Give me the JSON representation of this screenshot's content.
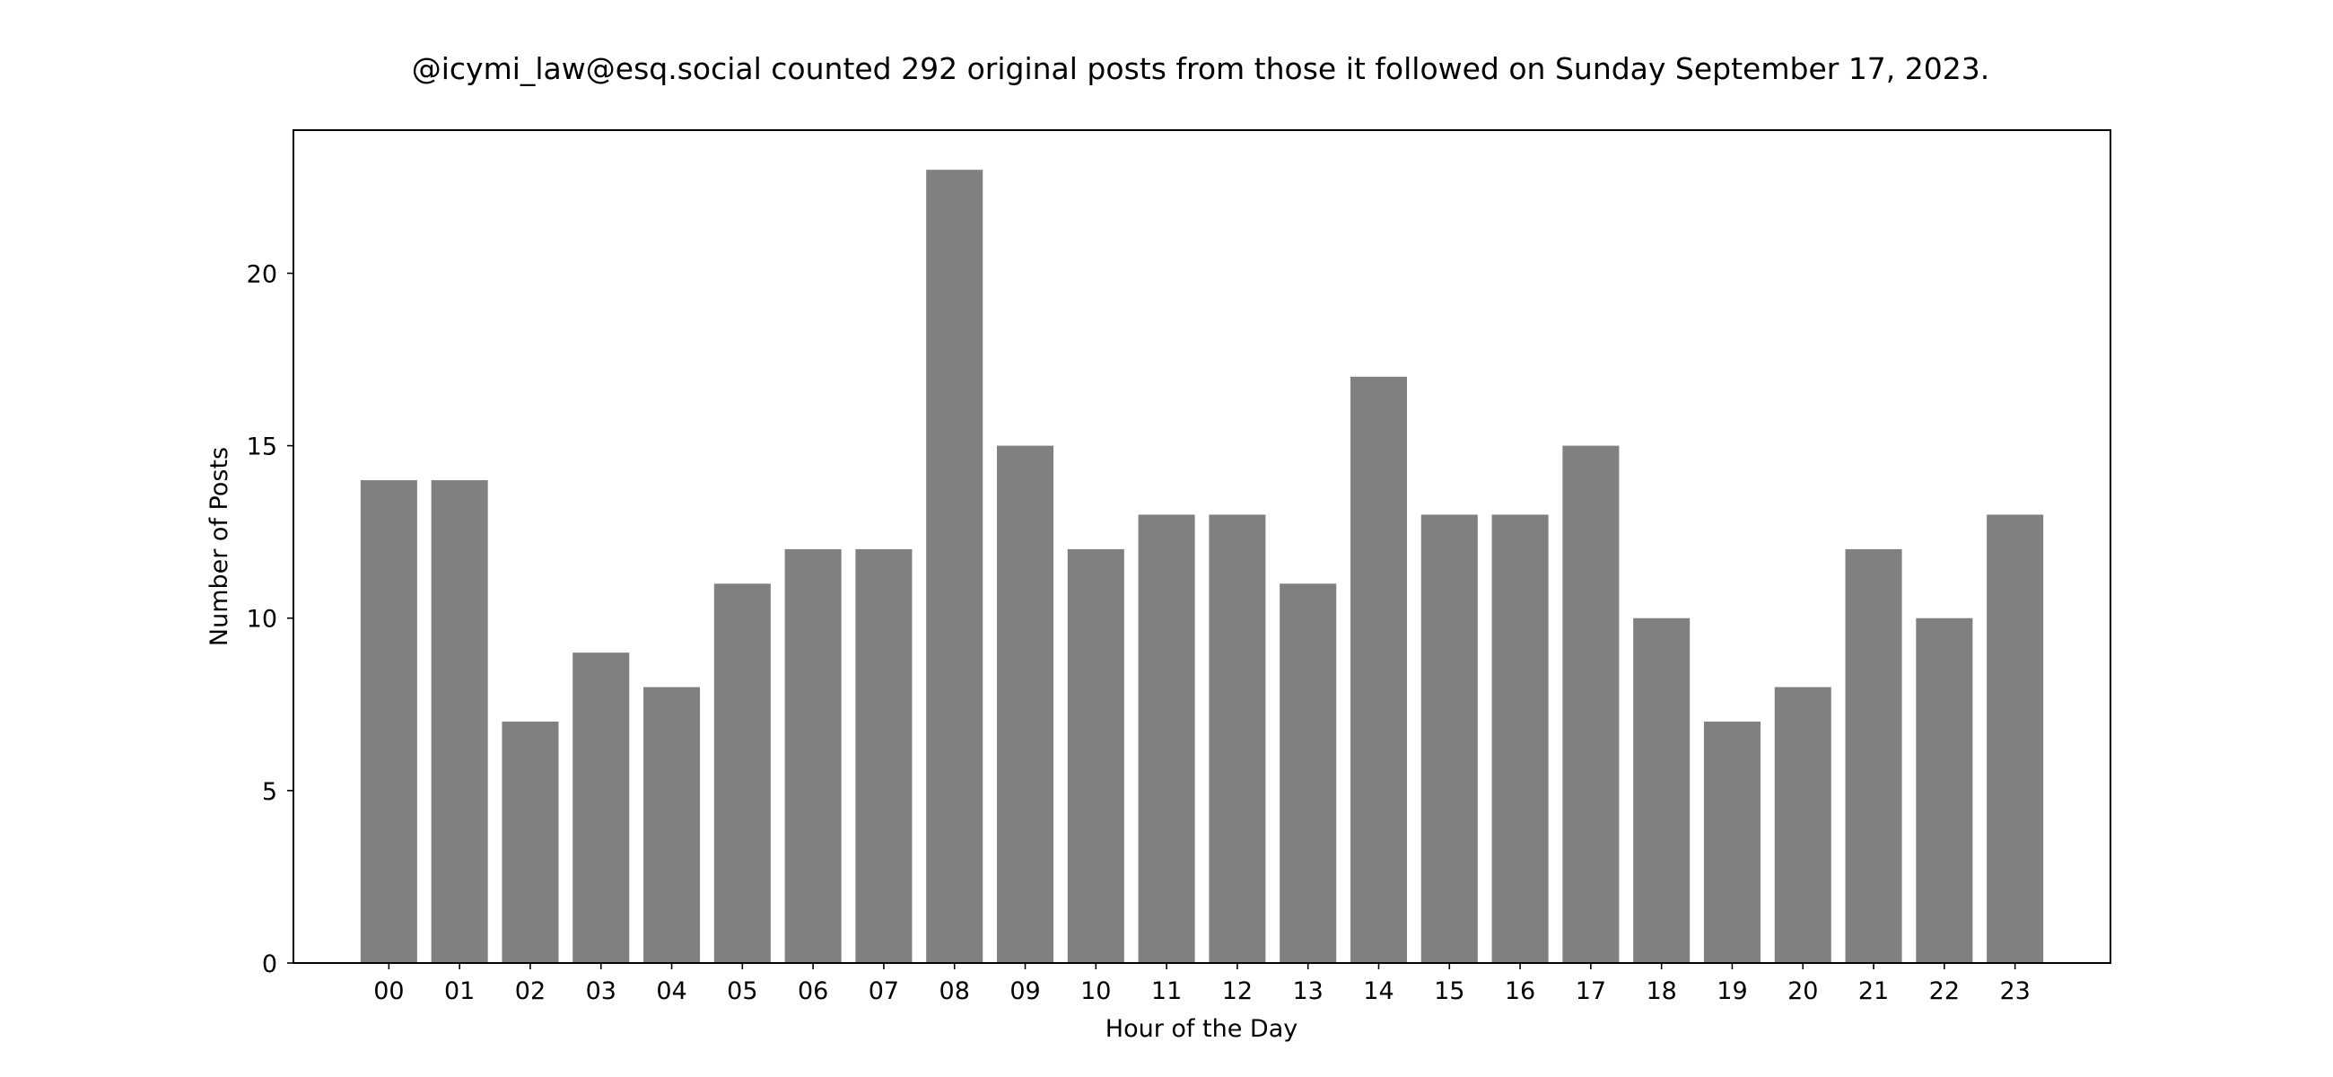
{
  "chart_data": {
    "type": "bar",
    "title": "@icymi_law@esq.social counted 292 original posts from those it followed on Sunday September 17, 2023.",
    "xlabel": "Hour of the Day",
    "ylabel": "Number of Posts",
    "categories": [
      "00",
      "01",
      "02",
      "03",
      "04",
      "05",
      "06",
      "07",
      "08",
      "09",
      "10",
      "11",
      "12",
      "13",
      "14",
      "15",
      "16",
      "17",
      "18",
      "19",
      "20",
      "21",
      "22",
      "23"
    ],
    "values": [
      14,
      14,
      7,
      9,
      8,
      11,
      12,
      12,
      23,
      15,
      12,
      13,
      13,
      11,
      17,
      13,
      13,
      15,
      10,
      7,
      8,
      12,
      10,
      13
    ],
    "ylim": [
      0,
      24.15
    ],
    "yticks": [
      0,
      5,
      10,
      15,
      20
    ],
    "grid": false,
    "bar_color": "#808080"
  }
}
